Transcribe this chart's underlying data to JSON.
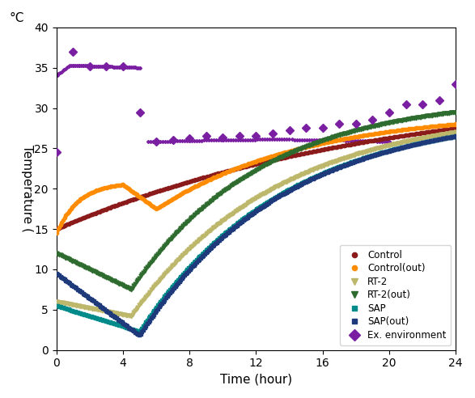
{
  "xlabel": "Time (hour)",
  "ylabel": "Temperature (",
  "ylabel_top": "°C",
  "xlim": [
    0,
    24
  ],
  "ylim": [
    0,
    40
  ],
  "xticks": [
    0,
    4,
    8,
    12,
    16,
    20,
    24
  ],
  "yticks": [
    0,
    5,
    10,
    15,
    20,
    25,
    30,
    35,
    40
  ],
  "series": {
    "Control": {
      "color": "#8B1A1A",
      "marker": "o",
      "ms": 3.0
    },
    "Control(out)": {
      "color": "#FF8C00",
      "marker": "o",
      "ms": 3.0
    },
    "RT-2": {
      "color": "#BDB76B",
      "marker": "v",
      "ms": 3.5
    },
    "RT-2(out)": {
      "color": "#2E6B2E",
      "marker": "v",
      "ms": 3.5
    },
    "SAP": {
      "color": "#008B8B",
      "marker": "s",
      "ms": 2.8
    },
    "SAP(out)": {
      "color": "#1E3A7A",
      "marker": "s",
      "ms": 2.8
    }
  },
  "ex_env": {
    "color": "#7B1FA2",
    "marker": "D",
    "ms": 5,
    "label": "Ex. environment",
    "x": [
      0,
      1,
      2,
      3,
      4,
      5,
      6,
      7,
      8,
      9,
      10,
      11,
      12,
      13,
      14,
      15,
      16,
      17,
      18,
      19,
      20,
      21,
      22,
      23,
      24
    ],
    "y": [
      24.5,
      37.0,
      35.2,
      35.2,
      35.2,
      29.5,
      25.8,
      26.0,
      26.2,
      26.5,
      26.3,
      26.5,
      26.5,
      26.8,
      27.2,
      27.5,
      27.5,
      28.0,
      28.0,
      28.5,
      29.5,
      30.5,
      30.5,
      31.0,
      33.0
    ]
  },
  "figsize": [
    5.87,
    4.92
  ],
  "dpi": 100
}
